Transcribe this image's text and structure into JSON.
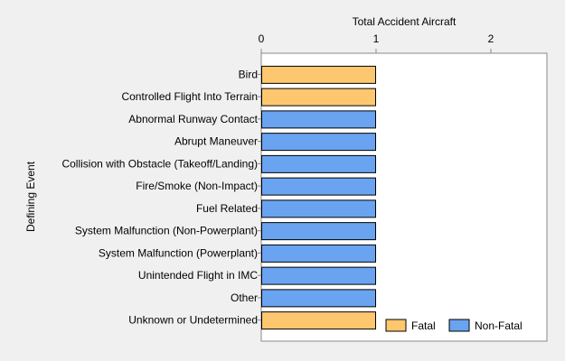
{
  "chart_data": {
    "type": "bar",
    "orientation": "horizontal",
    "xlabel": "Total Accident Aircraft",
    "ylabel": "Defining Event",
    "xlim": [
      0,
      2.55
    ],
    "xticks": [
      0,
      1,
      2
    ],
    "grid": false,
    "legend_position": "bottom-right-inside",
    "categories": [
      "Bird",
      "Controlled Flight Into Terrain",
      "Abnormal Runway Contact",
      "Abrupt Maneuver",
      "Collision with Obstacle (Takeoff/Landing)",
      "Fire/Smoke (Non-Impact)",
      "Fuel Related",
      "System Malfunction (Non-Powerplant)",
      "System Malfunction (Powerplant)",
      "Unintended Flight in IMC",
      "Other",
      "Unknown or Undetermined"
    ],
    "series": [
      {
        "name": "Fatal",
        "color": "#fdc76f",
        "values": [
          1,
          1,
          0,
          0,
          0,
          0,
          0,
          0,
          0,
          0,
          0,
          1
        ]
      },
      {
        "name": "Non-Fatal",
        "color": "#6aa3f0",
        "values": [
          0,
          0,
          1,
          1,
          1,
          1,
          1,
          1,
          1,
          1,
          1,
          0
        ]
      }
    ]
  }
}
